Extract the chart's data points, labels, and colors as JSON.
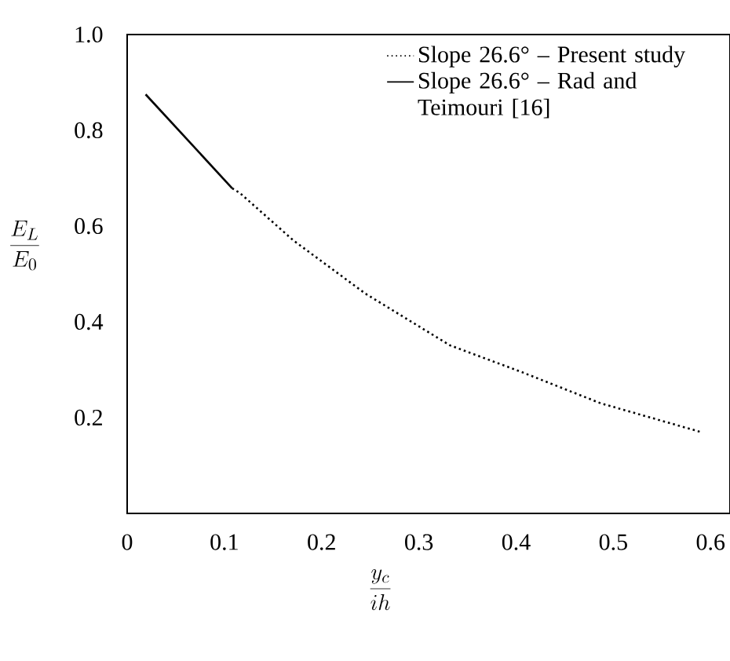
{
  "chart_data": {
    "type": "line",
    "xlabel": "\\frac{y_c}{ih}",
    "ylabel": "\\frac{E_L}{E_0}",
    "xlim": [
      0,
      0.62
    ],
    "ylim": [
      0,
      1.0
    ],
    "xticks": [
      0,
      0.1,
      0.2,
      0.3,
      0.4,
      0.5,
      0.6
    ],
    "yticks": [
      0.2,
      0.4,
      0.6,
      0.8,
      {
        "value": 1.0,
        "label": "1.0"
      }
    ],
    "legend": "top right",
    "series": [
      {
        "name": "Slope 26.6° – Present study",
        "color": "#000000",
        "line_style": "dotted",
        "x": [
          0.108,
          0.116,
          0.171,
          0.245,
          0.332,
          0.406,
          0.487,
          0.59
        ],
        "values": [
          0.679,
          0.669,
          0.57,
          0.459,
          0.351,
          0.295,
          0.23,
          0.17
        ]
      },
      {
        "name": "Slope 26.6° – Rad and Teimouri [16]",
        "color": "#000000",
        "line_style": "solid",
        "x": [
          0.019,
          0.108
        ],
        "values": [
          0.875,
          0.679
        ]
      }
    ]
  }
}
